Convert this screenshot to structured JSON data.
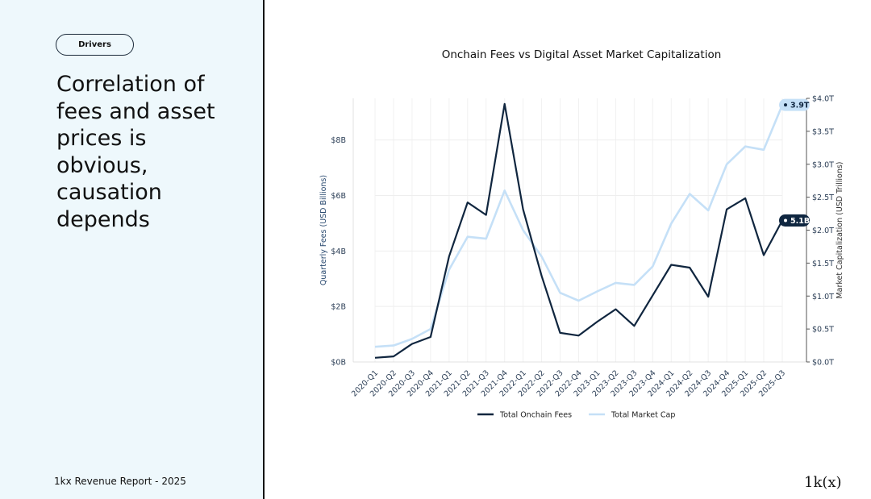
{
  "sidebar": {
    "tag": "Drivers",
    "headline_lines": [
      "Correlation of",
      "fees and asset",
      "prices is",
      "obvious,",
      "causation",
      "depends"
    ],
    "footer": "1kx Revenue Report  - 2025",
    "logo": "1k(x)"
  },
  "chart_data": {
    "type": "line",
    "title": "Onchain Fees vs Digital Asset Market Capitalization",
    "categories": [
      "2020-Q1",
      "2020-Q2",
      "2020-Q3",
      "2020-Q4",
      "2021-Q1",
      "2021-Q2",
      "2021-Q3",
      "2021-Q4",
      "2022-Q1",
      "2022-Q2",
      "2022-Q3",
      "2022-Q4",
      "2023-Q1",
      "2023-Q2",
      "2023-Q3",
      "2023-Q4",
      "2024-Q1",
      "2024-Q2",
      "2024-Q3",
      "2024-Q4",
      "2025-Q1",
      "2025-Q2",
      "2025-Q3"
    ],
    "series": [
      {
        "name": "Total Onchain Fees",
        "axis": "left",
        "color": "#10263f",
        "values": [
          0.15,
          0.2,
          0.65,
          0.9,
          3.8,
          5.75,
          5.3,
          9.3,
          5.5,
          3.1,
          1.05,
          0.95,
          1.45,
          1.9,
          1.3,
          2.4,
          3.5,
          3.4,
          2.35,
          5.5,
          5.9,
          3.85,
          5.1
        ]
      },
      {
        "name": "Total Market Cap",
        "axis": "right",
        "color": "#c5e0f7",
        "values": [
          0.23,
          0.25,
          0.35,
          0.5,
          1.4,
          1.9,
          1.87,
          2.6,
          2.0,
          1.6,
          1.05,
          0.93,
          1.07,
          1.2,
          1.17,
          1.45,
          2.1,
          2.55,
          2.3,
          3.0,
          3.27,
          3.22,
          3.9
        ]
      }
    ],
    "left_axis": {
      "label": "Quarterly Fees (USD Billions)",
      "ylim": [
        0,
        9.5
      ],
      "ticks": [
        0,
        2,
        4,
        6,
        8
      ],
      "tick_labels": [
        "$0B",
        "$2B",
        "$4B",
        "$6B",
        "$8B"
      ],
      "color": "#2a4a70"
    },
    "right_axis": {
      "label": "Market Capitalization (USD Trillions)",
      "ylim": [
        0,
        4.0
      ],
      "ticks": [
        0,
        0.5,
        1.0,
        1.5,
        2.0,
        2.5,
        3.0,
        3.5,
        4.0
      ],
      "tick_labels": [
        "$0.0T",
        "$0.5T",
        "$1.0T",
        "$1.5T",
        "$2.0T",
        "$2.5T",
        "$3.0T",
        "$3.5T",
        "$4.0T"
      ],
      "color": "#333333"
    },
    "callouts": [
      {
        "label": "3.9T",
        "series": "Total Market Cap",
        "value": 3.9
      },
      {
        "label": "5.1B",
        "series": "Total Onchain Fees",
        "value": 5.1
      }
    ],
    "grid": true,
    "legend_position": "bottom-center"
  }
}
